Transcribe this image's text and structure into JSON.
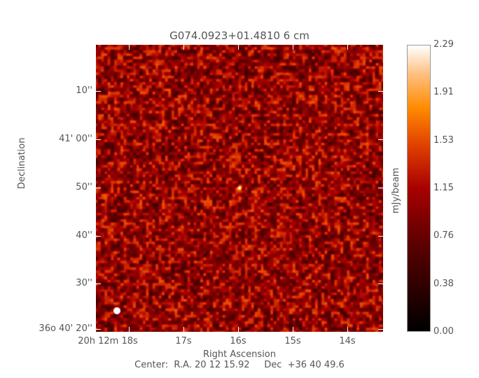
{
  "chart_data": {
    "type": "heatmap",
    "title": "G074.0923+01.4810 6 cm",
    "xlabel": "Right Ascension",
    "ylabel": "Declination",
    "x_ticks": [
      "20h 12m 18s",
      "17s",
      "16s",
      "15s",
      "14s"
    ],
    "y_ticks": [
      "10''",
      "41' 00''",
      "50''",
      "40''",
      "30''",
      "36o 40' 20''"
    ],
    "colorbar": {
      "label": "mJy/beam",
      "range": [
        0.0,
        2.29
      ],
      "ticks": [
        "2.29",
        "1.91",
        "1.53",
        "1.15",
        "0.76",
        "0.38",
        "0.00"
      ],
      "colormap": "black-red-orange-white"
    },
    "features": {
      "point_source": "near RA 20 12 16.0, Dec +36 40 50",
      "beam": "white filled ellipse, bottom-left"
    },
    "center_text": "Center:  R.A. 20 12 15.92     Dec  +36 40 49.6"
  }
}
